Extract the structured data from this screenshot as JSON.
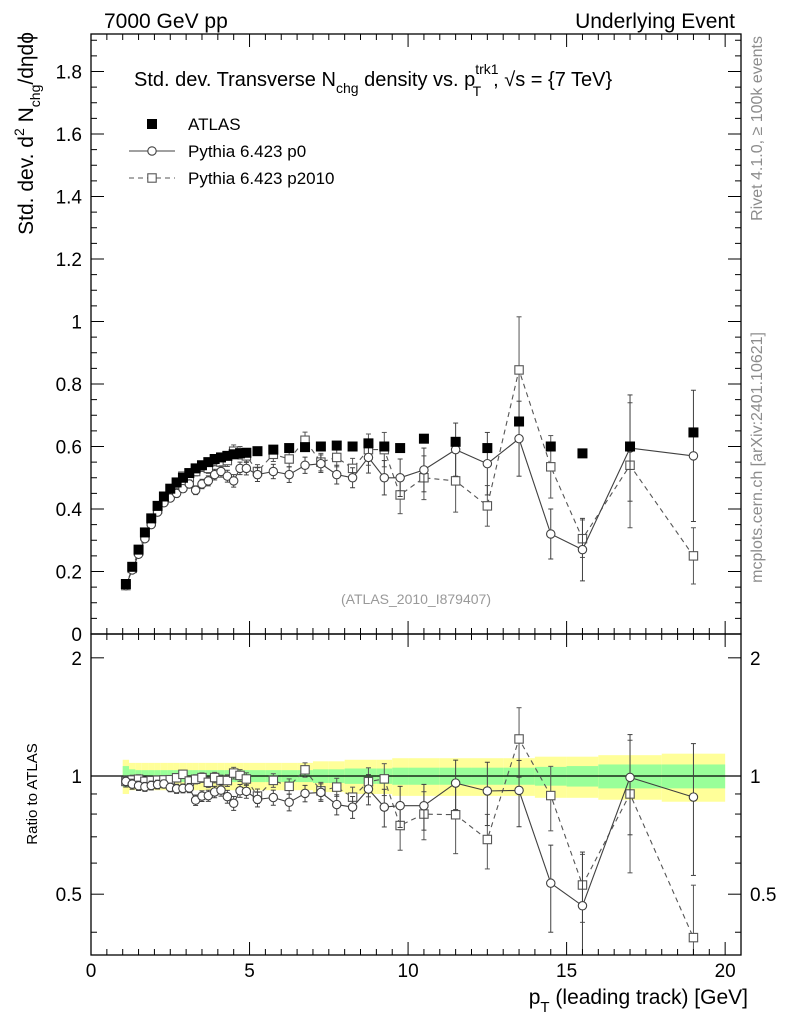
{
  "header": {
    "left": "7000 GeV pp",
    "right": "Underlying Event"
  },
  "side": {
    "rivet": "Rivet 4.1.0, ≥ 100k events",
    "mcplots": "mcplots.cern.ch [arXiv:2401.10621]"
  },
  "chart_data": {
    "type": "scatter",
    "title": {
      "main": "Std. dev. Transverse N",
      "main_sub": "chg",
      "mid": " density vs. p",
      "mid_sup": "trk1",
      "mid_sub": "T",
      "tail": ", √s = {7 TeV}"
    },
    "analysis_label": "(ATLAS_2010_I879407)",
    "ylabel": {
      "prefix": "Std. dev. d",
      "sup": "2",
      "mid": " N",
      "sub": "chg",
      "tail": "/dηdϕ"
    },
    "ratio_ylabel": "Ratio to ATLAS",
    "xlabel": {
      "p": "p",
      "sub": "T",
      "tail": " (leading track) [GeV]"
    },
    "xlim": [
      0,
      20.5
    ],
    "ylim": [
      0,
      1.92
    ],
    "ratio_ylim": [
      0.35,
      2.3
    ],
    "x_ticks": [
      0,
      5,
      10,
      15,
      20
    ],
    "y_ticks": [
      0,
      0.2,
      0.4,
      0.6,
      0.8,
      1,
      1.2,
      1.4,
      1.6,
      1.8
    ],
    "y_tick_labels": [
      "0",
      "0.2",
      "0.4",
      "0.6",
      "0.8",
      "1",
      "1.2",
      "1.4",
      "1.6",
      "1.8"
    ],
    "ratio_ticks": [
      0.5,
      1,
      2
    ],
    "ratio_tick_labels": [
      "0.5",
      "1",
      "2"
    ],
    "legend": [
      {
        "name": "ATLAS",
        "marker": "filled-square",
        "line": "none"
      },
      {
        "name": "Pythia 6.423 p0",
        "marker": "open-circle",
        "line": "solid"
      },
      {
        "name": "Pythia 6.423 p2010",
        "marker": "open-square",
        "line": "dashed"
      }
    ],
    "x": [
      1.1,
      1.3,
      1.5,
      1.7,
      1.9,
      2.1,
      2.3,
      2.5,
      2.7,
      2.9,
      3.1,
      3.3,
      3.5,
      3.7,
      3.9,
      4.1,
      4.3,
      4.5,
      4.7,
      4.9,
      5.25,
      5.75,
      6.25,
      6.75,
      7.25,
      7.75,
      8.25,
      8.75,
      9.25,
      9.75,
      10.5,
      11.5,
      12.5,
      13.5,
      14.5,
      15.5,
      17.0,
      19.0
    ],
    "series": [
      {
        "name": "ATLAS",
        "values": [
          0.16,
          0.215,
          0.27,
          0.325,
          0.37,
          0.41,
          0.44,
          0.465,
          0.485,
          0.5,
          0.515,
          0.53,
          0.54,
          0.55,
          0.56,
          0.565,
          0.57,
          0.575,
          0.578,
          0.58,
          0.585,
          0.59,
          0.595,
          0.598,
          0.6,
          0.603,
          0.6,
          0.61,
          0.6,
          0.595,
          0.625,
          0.615,
          0.595,
          0.68,
          0.6,
          0.578,
          0.6,
          0.645
        ]
      },
      {
        "name": "Pythia 6.423 p0",
        "values": [
          0.155,
          0.205,
          0.255,
          0.305,
          0.35,
          0.39,
          0.42,
          0.435,
          0.45,
          0.465,
          0.48,
          0.46,
          0.48,
          0.49,
          0.51,
          0.52,
          0.505,
          0.49,
          0.53,
          0.53,
          0.51,
          0.52,
          0.51,
          0.54,
          0.545,
          0.51,
          0.5,
          0.565,
          0.5,
          0.5,
          0.525,
          0.59,
          0.545,
          0.625,
          0.32,
          0.27,
          0.595,
          0.57
        ],
        "errors": [
          0.005,
          0.006,
          0.007,
          0.008,
          0.009,
          0.01,
          0.01,
          0.011,
          0.012,
          0.012,
          0.013,
          0.014,
          0.015,
          0.016,
          0.017,
          0.018,
          0.019,
          0.02,
          0.02,
          0.021,
          0.022,
          0.023,
          0.025,
          0.026,
          0.028,
          0.03,
          0.032,
          0.05,
          0.055,
          0.06,
          0.07,
          0.085,
          0.1,
          0.12,
          0.08,
          0.1,
          0.17,
          0.21
        ]
      },
      {
        "name": "Pythia 6.423 p2010",
        "values": [
          0.155,
          0.21,
          0.265,
          0.315,
          0.36,
          0.4,
          0.43,
          0.455,
          0.48,
          0.505,
          0.5,
          0.52,
          0.535,
          0.53,
          0.555,
          0.55,
          0.555,
          0.585,
          0.58,
          0.57,
          0.52,
          0.575,
          0.56,
          0.62,
          0.55,
          0.565,
          0.53,
          0.59,
          0.59,
          0.445,
          0.5,
          0.49,
          0.41,
          0.845,
          0.535,
          0.305,
          0.54,
          0.25
        ],
        "errors": [
          0.005,
          0.006,
          0.007,
          0.008,
          0.009,
          0.01,
          0.01,
          0.011,
          0.012,
          0.012,
          0.013,
          0.014,
          0.015,
          0.016,
          0.017,
          0.018,
          0.019,
          0.02,
          0.02,
          0.021,
          0.022,
          0.023,
          0.025,
          0.026,
          0.028,
          0.03,
          0.032,
          0.05,
          0.055,
          0.06,
          0.07,
          0.1,
          0.065,
          0.17,
          0.1,
          0.06,
          0.2,
          0.09
        ]
      }
    ],
    "ratio_band": {
      "x_edges": [
        1.0,
        1.2,
        1.4,
        1.6,
        1.8,
        2.0,
        2.2,
        2.4,
        2.6,
        2.8,
        3.0,
        3.2,
        3.4,
        3.6,
        3.8,
        4.0,
        4.2,
        4.4,
        4.6,
        4.8,
        5.0,
        5.5,
        6.0,
        6.5,
        7.0,
        7.5,
        8.0,
        8.5,
        9.0,
        9.5,
        10.0,
        11.0,
        12.0,
        13.0,
        14.0,
        15.0,
        16.0,
        18.0,
        20.0
      ],
      "inner_half": [
        0.06,
        0.04,
        0.035,
        0.035,
        0.035,
        0.035,
        0.035,
        0.035,
        0.035,
        0.035,
        0.035,
        0.035,
        0.035,
        0.035,
        0.035,
        0.035,
        0.035,
        0.035,
        0.035,
        0.035,
        0.035,
        0.035,
        0.035,
        0.035,
        0.04,
        0.04,
        0.045,
        0.045,
        0.045,
        0.05,
        0.05,
        0.05,
        0.05,
        0.05,
        0.055,
        0.06,
        0.07,
        0.07
      ],
      "outer_half": [
        0.1,
        0.08,
        0.08,
        0.08,
        0.08,
        0.08,
        0.08,
        0.08,
        0.08,
        0.08,
        0.08,
        0.08,
        0.08,
        0.08,
        0.08,
        0.08,
        0.08,
        0.08,
        0.08,
        0.08,
        0.08,
        0.08,
        0.08,
        0.08,
        0.09,
        0.09,
        0.1,
        0.1,
        0.1,
        0.11,
        0.11,
        0.11,
        0.11,
        0.11,
        0.12,
        0.12,
        0.13,
        0.14
      ]
    },
    "colors": {
      "atlas": "#000000",
      "p0": "#404040",
      "p2010": "#555555",
      "band_inner": "#99ff99",
      "band_outer": "#ffff99",
      "side_text": "#8c8c8c",
      "analysis_text": "#999999"
    }
  }
}
